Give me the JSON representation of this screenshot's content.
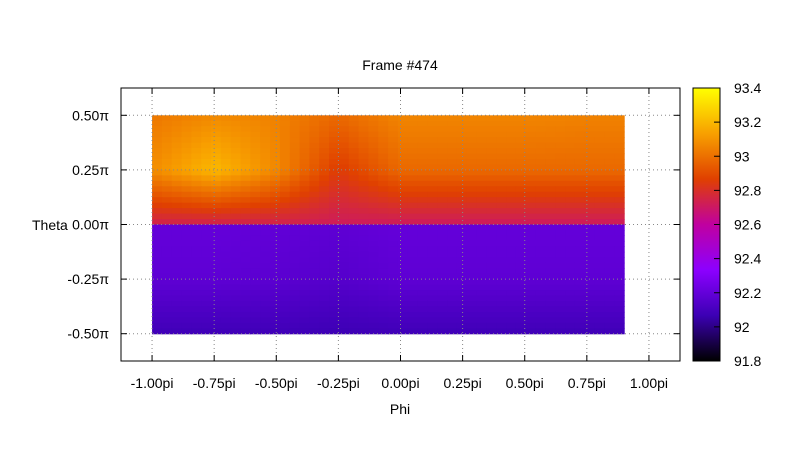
{
  "chart_data": {
    "type": "heatmap",
    "title": "Frame #474",
    "xlabel": "Phi",
    "ylabel": "Theta",
    "xlim": [
      -1.125,
      1.125
    ],
    "ylim": [
      -0.625,
      0.625
    ],
    "x_ticks": [
      {
        "value": -1.0,
        "label": "-1.00pi"
      },
      {
        "value": -0.75,
        "label": "-0.75pi"
      },
      {
        "value": -0.5,
        "label": "-0.50pi"
      },
      {
        "value": -0.25,
        "label": "-0.25pi"
      },
      {
        "value": 0.0,
        "label": "0.00pi"
      },
      {
        "value": 0.25,
        "label": "0.25pi"
      },
      {
        "value": 0.5,
        "label": "0.50pi"
      },
      {
        "value": 0.75,
        "label": "0.75pi"
      },
      {
        "value": 1.0,
        "label": "1.00pi"
      }
    ],
    "y_ticks": [
      {
        "value": 0.5,
        "label": "0.50π"
      },
      {
        "value": 0.25,
        "label": "0.25π"
      },
      {
        "value": 0.0,
        "label": "0.00π"
      },
      {
        "value": -0.25,
        "label": "-0.25π"
      },
      {
        "value": -0.5,
        "label": "-0.50π"
      }
    ],
    "grid": true,
    "colorbar": {
      "min": 91.8,
      "max": 93.4,
      "ticks": [
        {
          "value": 93.4,
          "label": "93.4"
        },
        {
          "value": 93.2,
          "label": "93.2"
        },
        {
          "value": 93.0,
          "label": "93"
        },
        {
          "value": 92.8,
          "label": "92.8"
        },
        {
          "value": 92.6,
          "label": "92.6"
        },
        {
          "value": 92.4,
          "label": "92.4"
        },
        {
          "value": 92.2,
          "label": "92.2"
        },
        {
          "value": 92.0,
          "label": "92"
        },
        {
          "value": 91.8,
          "label": "91.8"
        }
      ],
      "palette": [
        "#000000",
        "#3c00b4",
        "#8c00ff",
        "#c000a0",
        "#e04000",
        "#f8a000",
        "#ffff00"
      ]
    },
    "data": {
      "x": [
        -1.0,
        -0.75,
        -0.5,
        -0.25,
        0.0,
        0.25,
        0.5,
        0.75,
        0.9
      ],
      "y": [
        0.5,
        0.25,
        0.01,
        -0.01,
        -0.25,
        -0.5
      ],
      "z": [
        [
          93.02,
          93.07,
          93.05,
          92.98,
          93.06,
          93.06,
          93.06,
          93.05,
          93.05
        ],
        [
          93.08,
          93.2,
          93.07,
          92.85,
          92.98,
          92.98,
          92.98,
          92.98,
          92.98
        ],
        [
          92.75,
          92.75,
          92.75,
          92.72,
          92.72,
          92.72,
          92.72,
          92.72,
          92.72
        ],
        [
          92.2,
          92.2,
          92.19,
          92.18,
          92.2,
          92.2,
          92.2,
          92.2,
          92.2
        ],
        [
          92.18,
          92.18,
          92.17,
          92.15,
          92.18,
          92.18,
          92.18,
          92.18,
          92.18
        ],
        [
          92.08,
          92.08,
          92.08,
          92.07,
          92.08,
          92.08,
          92.08,
          92.08,
          92.08
        ]
      ]
    }
  }
}
